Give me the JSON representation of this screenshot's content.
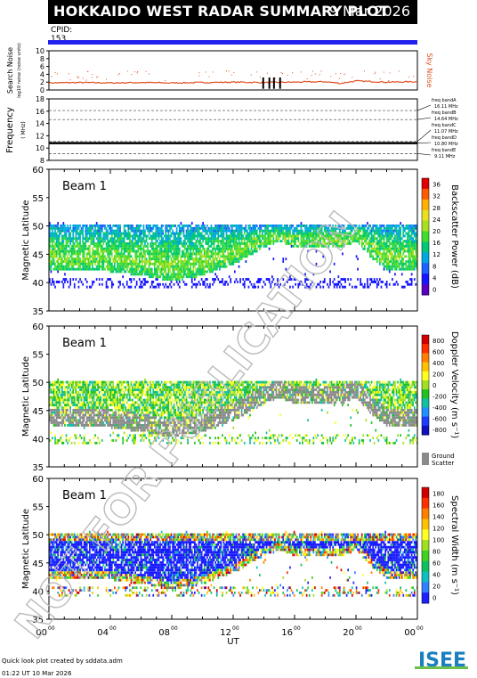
{
  "title": "HOKKAIDO WEST RADAR SUMMARY PLOT",
  "date": "9 Mar 2026",
  "cpid_label": "CPID:",
  "cpid_value": "153",
  "noise": {
    "ylabel": "Search Noise",
    "ylabel_sub": "log10 noise (noise units)",
    "right_label": "Sky Noise",
    "ticks": [
      "10",
      "8",
      "6",
      "4",
      "2",
      "0"
    ],
    "color": "#e05020"
  },
  "frequency": {
    "ylabel": "Frequency",
    "ylabel_sub": "( MHz)",
    "ticks": [
      "18",
      "16",
      "14",
      "12",
      "10",
      "8"
    ],
    "bands": [
      {
        "label": "freq bandA",
        "value": "16.11 MHz"
      },
      {
        "label": "freq bandB",
        "value": "14.64 MHz"
      },
      {
        "label": "freq bandC",
        "value": "11.07 MHz"
      },
      {
        "label": "freq bandD",
        "value": "10.80 MHz"
      },
      {
        "label": "freq bandE",
        "value": "9.11 MHz"
      }
    ]
  },
  "panels": [
    {
      "beam": "Beam  1",
      "ylabel": "Magnetic Latitude",
      "ticks": [
        "60",
        "55",
        "50",
        "45",
        "40",
        "35"
      ],
      "cbar_label": "Backscatter Power (dB)",
      "cbar_ticks": [
        "36",
        "32",
        "28",
        "24",
        "20",
        "16",
        "12",
        "8",
        "4",
        "0"
      ]
    },
    {
      "beam": "Beam  1",
      "ylabel": "Magnetic Latitude",
      "ticks": [
        "60",
        "55",
        "50",
        "45",
        "40",
        "35"
      ],
      "cbar_label": "Doppler Velocity (m s⁻¹)",
      "cbar_ticks": [
        "800",
        "600",
        "400",
        "200",
        "0",
        "-200",
        "-400",
        "-600",
        "-800"
      ],
      "ground_label_1": "Ground",
      "ground_label_2": "Scatter"
    },
    {
      "beam": "Beam  1",
      "ylabel": "Magnetic Latitude",
      "ticks": [
        "60",
        "55",
        "50",
        "45",
        "40",
        "35"
      ],
      "cbar_label": "Spectral Width (m s⁻¹)",
      "cbar_ticks": [
        "180",
        "160",
        "140",
        "120",
        "100",
        "80",
        "60",
        "40",
        "20",
        "0"
      ]
    }
  ],
  "xaxis": {
    "label": "UT",
    "ticks": [
      "00",
      "04",
      "08",
      "12",
      "16",
      "20",
      "00"
    ],
    "tick_sup": "00"
  },
  "watermark": "NOT FOR PUBLICATION",
  "credit": "Quick look plot created by sddata.adm",
  "credit2": "01:22 UT 10 Mar 2026",
  "logo": "ISEE",
  "chart_data": {
    "type": "heatmap",
    "x_unit": "UT hours",
    "xlim": [
      0,
      24
    ],
    "ylim": [
      35,
      60
    ],
    "noise_series": {
      "name": "Sky Noise",
      "x": [
        0,
        2,
        4,
        6,
        8,
        10,
        12,
        14,
        16,
        18,
        19,
        20,
        22,
        24
      ],
      "y": [
        1.8,
        1.9,
        1.8,
        1.9,
        1.8,
        1.9,
        2.0,
        1.9,
        2.0,
        2.1,
        1.7,
        2.3,
        2.0,
        2.1
      ]
    },
    "scatter_bands": [
      {
        "x": [
          0,
          3,
          6,
          8,
          10,
          12,
          14,
          15,
          16,
          17,
          18,
          19,
          20,
          21,
          22,
          23,
          24
        ],
        "lower": [
          42,
          42,
          41,
          40,
          41,
          43,
          46,
          47,
          46,
          46,
          46,
          46,
          47,
          44,
          42,
          42,
          42
        ],
        "upper": [
          50,
          50,
          50,
          50,
          50,
          50,
          50,
          50,
          50,
          50,
          50,
          50,
          50,
          50,
          50,
          50,
          50
        ]
      }
    ]
  }
}
